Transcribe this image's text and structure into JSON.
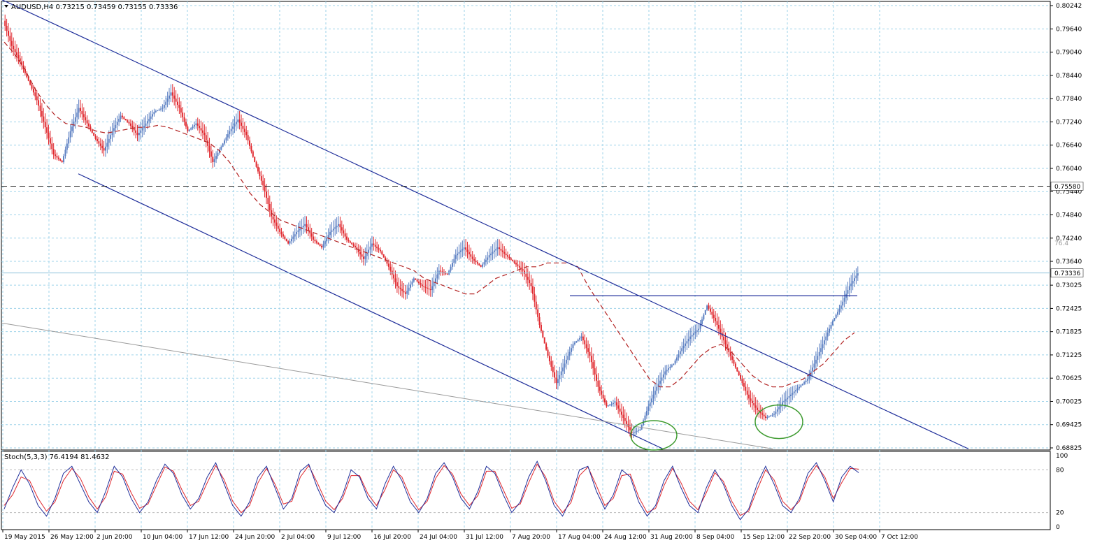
{
  "header": {
    "symbol_line": "AUDUSD,H4  0.73215 0.73459 0.73155 0.73336"
  },
  "chart_data": [
    {
      "type": "line",
      "name_label": "AUDUSD,H4",
      "ohlc": {
        "open": 0.73215,
        "high": 0.73459,
        "low": 0.73155,
        "close": 0.73336
      },
      "ylim": [
        0.68825,
        0.80242
      ],
      "y_ticks": [
        "0.80242",
        "0.79640",
        "0.79040",
        "0.78440",
        "0.77840",
        "0.77240",
        "0.76640",
        "0.76040",
        "0.75440",
        "0.74840",
        "0.74240",
        "0.73640",
        "0.73025",
        "0.72425",
        "0.71825",
        "0.71225",
        "0.70625",
        "0.70025",
        "0.69425",
        "0.68825"
      ],
      "x_ticks": [
        "19 May 2015",
        "26 May 12:00",
        "2 Jun 20:00",
        "10 Jun 04:00",
        "17 Jun 12:00",
        "24 Jun 20:00",
        "2 Jul 04:00",
        "9 Jul 12:00",
        "16 Jul 20:00",
        "24 Jul 04:00",
        "31 Jul 12:00",
        "7 Aug 20:00",
        "17 Aug 04:00",
        "24 Aug 12:00",
        "31 Aug 20:00",
        "8 Sep 04:00",
        "15 Sep 12:00",
        "22 Sep 20:00",
        "30 Sep 04:00",
        "7 Oct 12:00"
      ],
      "current_price_label": "0.73336",
      "horizontal_level_label": "0.75580",
      "fib_label": "76.4",
      "price_points": [
        0.7985,
        0.792,
        0.788,
        0.783,
        0.778,
        0.771,
        0.764,
        0.762,
        0.77,
        0.776,
        0.772,
        0.768,
        0.765,
        0.77,
        0.774,
        0.772,
        0.769,
        0.772,
        0.775,
        0.776,
        0.78,
        0.776,
        0.77,
        0.772,
        0.769,
        0.762,
        0.766,
        0.77,
        0.773,
        0.769,
        0.762,
        0.756,
        0.748,
        0.744,
        0.741,
        0.744,
        0.746,
        0.742,
        0.74,
        0.744,
        0.746,
        0.742,
        0.74,
        0.737,
        0.741,
        0.739,
        0.735,
        0.73,
        0.728,
        0.732,
        0.73,
        0.729,
        0.734,
        0.733,
        0.738,
        0.74,
        0.737,
        0.735,
        0.738,
        0.74,
        0.738,
        0.736,
        0.734,
        0.73,
        0.72,
        0.712,
        0.705,
        0.71,
        0.715,
        0.717,
        0.712,
        0.704,
        0.699,
        0.7,
        0.696,
        0.692,
        0.693,
        0.699,
        0.704,
        0.708,
        0.71,
        0.714,
        0.717,
        0.719,
        0.725,
        0.721,
        0.716,
        0.711,
        0.706,
        0.701,
        0.698,
        0.696,
        0.697,
        0.7,
        0.702,
        0.704,
        0.706,
        0.711,
        0.716,
        0.721,
        0.725,
        0.73,
        0.7334
      ],
      "moving_average": [
        0.793,
        0.79,
        0.786,
        0.781,
        0.777,
        0.774,
        0.772,
        0.7715,
        0.771,
        0.77,
        0.7695,
        0.77,
        0.7705,
        0.771,
        0.771,
        0.7715,
        0.771,
        0.77,
        0.769,
        0.768,
        0.767,
        0.765,
        0.762,
        0.758,
        0.754,
        0.751,
        0.749,
        0.747,
        0.746,
        0.745,
        0.744,
        0.743,
        0.742,
        0.741,
        0.74,
        0.739,
        0.738,
        0.737,
        0.736,
        0.735,
        0.734,
        0.732,
        0.731,
        0.73,
        0.729,
        0.728,
        0.728,
        0.73,
        0.732,
        0.733,
        0.734,
        0.735,
        0.735,
        0.736,
        0.736,
        0.736,
        0.735,
        0.73,
        0.726,
        0.722,
        0.718,
        0.714,
        0.71,
        0.706,
        0.704,
        0.704,
        0.706,
        0.709,
        0.712,
        0.714,
        0.715,
        0.713,
        0.71,
        0.707,
        0.705,
        0.704,
        0.704,
        0.705,
        0.706,
        0.708,
        0.71,
        0.713,
        0.716,
        0.718
      ],
      "lines": {
        "channel_upper": {
          "from": [
            0.0,
            0.804
          ],
          "to": [
            1.0,
            0.688
          ]
        },
        "channel_lower": {
          "from": [
            0.0,
            0.759
          ],
          "to": [
            0.6,
            0.688
          ]
        },
        "neckline": 0.7275,
        "level": 0.7558,
        "current": 0.7334
      },
      "grid": true,
      "colors": {
        "bull": "#5b7fc2",
        "bear": "#e0282e",
        "ma": "#b22222",
        "channel": "#1f2e9a",
        "grid": "#9fd3ea",
        "ellipse": "#3c9a2e"
      }
    },
    {
      "type": "line",
      "indicator_label": "Stoch(5,3,3) 76.4194 81.4632",
      "ylim": [
        0,
        100
      ],
      "y_ticks": [
        "100",
        "80",
        "20",
        "0"
      ],
      "main_line": [
        25,
        55,
        80,
        60,
        30,
        15,
        40,
        75,
        85,
        60,
        35,
        20,
        50,
        85,
        70,
        40,
        20,
        35,
        65,
        88,
        75,
        45,
        25,
        40,
        70,
        90,
        60,
        30,
        15,
        35,
        70,
        85,
        55,
        25,
        40,
        78,
        88,
        55,
        30,
        20,
        45,
        80,
        70,
        40,
        25,
        60,
        85,
        65,
        35,
        20,
        40,
        75,
        90,
        70,
        40,
        25,
        50,
        85,
        75,
        45,
        20,
        35,
        70,
        92,
        65,
        30,
        15,
        40,
        80,
        85,
        50,
        25,
        45,
        80,
        70,
        35,
        15,
        30,
        65,
        85,
        55,
        30,
        20,
        55,
        80,
        60,
        30,
        10,
        25,
        60,
        85,
        60,
        30,
        20,
        40,
        75,
        90,
        65,
        35,
        70,
        85,
        76
      ],
      "signal_line": [
        30,
        45,
        70,
        65,
        40,
        22,
        35,
        65,
        82,
        68,
        42,
        25,
        42,
        78,
        74,
        48,
        26,
        32,
        58,
        84,
        78,
        52,
        30,
        36,
        62,
        86,
        66,
        36,
        20,
        30,
        62,
        82,
        60,
        32,
        36,
        70,
        86,
        62,
        36,
        24,
        40,
        72,
        72,
        46,
        30,
        52,
        80,
        70,
        42,
        24,
        36,
        68,
        86,
        74,
        46,
        30,
        44,
        78,
        78,
        52,
        26,
        32,
        62,
        88,
        70,
        36,
        20,
        34,
        72,
        84,
        58,
        30,
        40,
        72,
        74,
        42,
        20,
        26,
        58,
        82,
        62,
        36,
        24,
        48,
        76,
        64,
        36,
        16,
        22,
        52,
        80,
        66,
        36,
        24,
        36,
        68,
        86,
        70,
        40,
        62,
        82,
        81
      ]
    }
  ]
}
